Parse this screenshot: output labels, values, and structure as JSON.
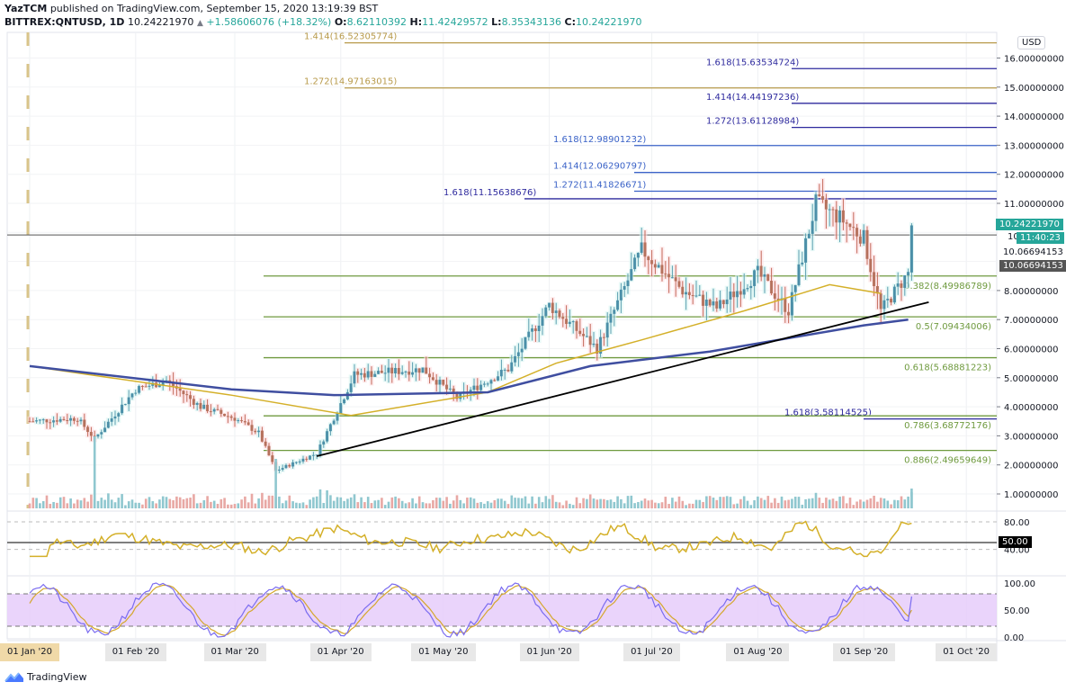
{
  "header": {
    "publisher": "YazTCM",
    "published_text": "published on TradingView.com, September 15, 2020 13:19:39 BST",
    "symbol": "BITTREX:QNTUSD, 1D",
    "last": "10.24221970",
    "change": "+1.58606076 (+18.32%)",
    "open_label": "O:",
    "open": "8.62110392",
    "high_label": "H:",
    "high": "11.42429572",
    "low_label": "L:",
    "low": "8.35343136",
    "close_label": "C:",
    "close": "10.24221970"
  },
  "price_axis": {
    "currency": "USD",
    "ticks": [
      "16.00000000",
      "15.00000000",
      "14.00000000",
      "13.00000000",
      "12.00000000",
      "11.00000000",
      "8.00000000",
      "7.00000000",
      "6.00000000",
      "5.00000000",
      "4.00000000",
      "3.00000000",
      "2.00000000",
      "1.00000000"
    ],
    "last_price_tag": "10.24221970",
    "countdown_tag": "11:40:23",
    "line_value": "10.06694153",
    "line_tag": "10.06694153",
    "partial_tick": "10."
  },
  "rsi_axis": {
    "ticks": [
      "80.00",
      "40.00"
    ],
    "current_tag": "50.00"
  },
  "stoch_axis": {
    "ticks": [
      "100.00",
      "50.00",
      "0.00"
    ]
  },
  "time_axis": {
    "labels": [
      "01 Jan '20",
      "01 Feb '20",
      "01 Mar '20",
      "01 Apr '20",
      "01 May '20",
      "01 Jun '20",
      "01 Jul '20",
      "01 Aug '20",
      "01 Sep '20",
      "01 Oct '20"
    ]
  },
  "footer": {
    "brand": "TradingView"
  },
  "colors": {
    "up": "#26a69a",
    "down": "#ef5350",
    "ma_fast": "#d4b029",
    "ma_slow": "#3f4ea0",
    "fib_ext_gold": "#b89a4a",
    "fib_ext_navy": "#2e2a9e",
    "fib_ext_blue": "#3a62c7",
    "fib_retr_green": "#6f9a3f",
    "trendline": "#000000",
    "rsi": "#d4b029",
    "stoch_k": "#7b6cf0",
    "stoch_d": "#d4a72c",
    "stoch_band": "#e6ccfa"
  },
  "chart_data": {
    "type": "candlestick",
    "title": "BITTREX:QNTUSD, 1D",
    "ylabel": "USD",
    "ylim": [
      0.5,
      17
    ],
    "x_range": [
      "2020-01-01",
      "2020-10-10"
    ],
    "grid": true,
    "ohlc_last": {
      "open": 8.62110392,
      "high": 11.42429572,
      "low": 8.35343136,
      "close": 10.2422197,
      "change": 1.58606076,
      "change_pct": 18.32
    },
    "price_path_approx": [
      {
        "date": "2020-01-01",
        "close": 3.5
      },
      {
        "date": "2020-01-15",
        "close": 3.6
      },
      {
        "date": "2020-01-20",
        "close": 2.9
      },
      {
        "date": "2020-02-01",
        "close": 4.6
      },
      {
        "date": "2020-02-10",
        "close": 4.9
      },
      {
        "date": "2020-02-20",
        "close": 4.0
      },
      {
        "date": "2020-03-01",
        "close": 3.6
      },
      {
        "date": "2020-03-08",
        "close": 3.1
      },
      {
        "date": "2020-03-13",
        "close": 1.8
      },
      {
        "date": "2020-03-25",
        "close": 2.4
      },
      {
        "date": "2020-04-05",
        "close": 5.1
      },
      {
        "date": "2020-04-25",
        "close": 5.3
      },
      {
        "date": "2020-05-05",
        "close": 4.3
      },
      {
        "date": "2020-05-20",
        "close": 5.3
      },
      {
        "date": "2020-06-01",
        "close": 7.5
      },
      {
        "date": "2020-06-15",
        "close": 6.0
      },
      {
        "date": "2020-06-28",
        "close": 9.4
      },
      {
        "date": "2020-07-10",
        "close": 8.0
      },
      {
        "date": "2020-07-20",
        "close": 7.4
      },
      {
        "date": "2020-08-01",
        "close": 8.6
      },
      {
        "date": "2020-08-10",
        "close": 7.3
      },
      {
        "date": "2020-08-18",
        "close": 11.0
      },
      {
        "date": "2020-08-25",
        "close": 10.5
      },
      {
        "date": "2020-09-01",
        "close": 9.8
      },
      {
        "date": "2020-09-06",
        "close": 7.3
      },
      {
        "date": "2020-09-14",
        "close": 8.6
      },
      {
        "date": "2020-09-15",
        "close": 10.24
      }
    ],
    "moving_averages": [
      {
        "name": "MA (fast, yellow)",
        "points": [
          [
            1,
            5.4
          ],
          [
            60,
            4.4
          ],
          [
            95,
            3.7
          ],
          [
            135,
            4.5
          ],
          [
            155,
            5.5
          ],
          [
            180,
            6.3
          ],
          [
            210,
            7.3
          ],
          [
            235,
            8.2
          ],
          [
            250,
            7.9
          ]
        ]
      },
      {
        "name": "MA (slow, navy)",
        "points": [
          [
            1,
            5.4
          ],
          [
            60,
            4.6
          ],
          [
            90,
            4.4
          ],
          [
            135,
            4.5
          ],
          [
            165,
            5.4
          ],
          [
            200,
            5.9
          ],
          [
            225,
            6.4
          ],
          [
            245,
            6.8
          ],
          [
            258,
            7.0
          ]
        ]
      }
    ],
    "trendline": {
      "from": {
        "date": "2020-03-25",
        "price": 2.3
      },
      "to": {
        "date": "2020-09-20",
        "price": 7.6
      }
    },
    "fib_extensions": [
      {
        "level": "1.414",
        "value": 16.52305774,
        "label": "1.414(16.52305774)",
        "color": "gold"
      },
      {
        "level": "1.272",
        "value": 14.97163015,
        "label": "1.272(14.97163015)",
        "color": "gold"
      },
      {
        "level": "1.618",
        "value": 15.63534724,
        "label": "1.618(15.63534724)",
        "color": "navy"
      },
      {
        "level": "1.414",
        "value": 14.44197236,
        "label": "1.414(14.44197236)",
        "color": "navy"
      },
      {
        "level": "1.272",
        "value": 13.61128984,
        "label": "1.272(13.61128984)",
        "color": "navy"
      },
      {
        "level": "1.618",
        "value": 12.98901232,
        "label": "1.618(12.98901232)",
        "color": "blue"
      },
      {
        "level": "1.414",
        "value": 12.06290797,
        "label": "1.414(12.06290797)",
        "color": "blue"
      },
      {
        "level": "1.272",
        "value": 11.41826671,
        "label": "1.272(11.41826671)",
        "color": "blue"
      },
      {
        "level": "1.618",
        "value": 11.15638676,
        "label": "1.618(11.15638676)",
        "color": "navy"
      },
      {
        "level": "1.618",
        "value": 3.58114525,
        "label": "1.618(3.58114525)",
        "color": "navy"
      }
    ],
    "fib_retracements": [
      {
        "level": "0.382",
        "value": 8.49986789,
        "label": "0.382(8.49986789)"
      },
      {
        "level": "0.5",
        "value": 7.09434006,
        "label": "0.5(7.09434006)"
      },
      {
        "level": "0.618",
        "value": 5.68881223,
        "label": "0.618(5.68881223)"
      },
      {
        "level": "0.786",
        "value": 3.68772176,
        "label": "0.786(3.68772176)"
      },
      {
        "level": "0.886",
        "value": 2.49659649,
        "label": "0.886(2.49659649)"
      }
    ],
    "horizontal_line": 10.06694153,
    "rsi": {
      "range": [
        0,
        100
      ],
      "levels": [
        80,
        50,
        40
      ],
      "current_approx": 78
    },
    "stoch_rsi": {
      "range": [
        0,
        100
      ],
      "band": [
        20,
        80
      ],
      "current_k_approx": 75,
      "current_d_approx": 50
    }
  }
}
